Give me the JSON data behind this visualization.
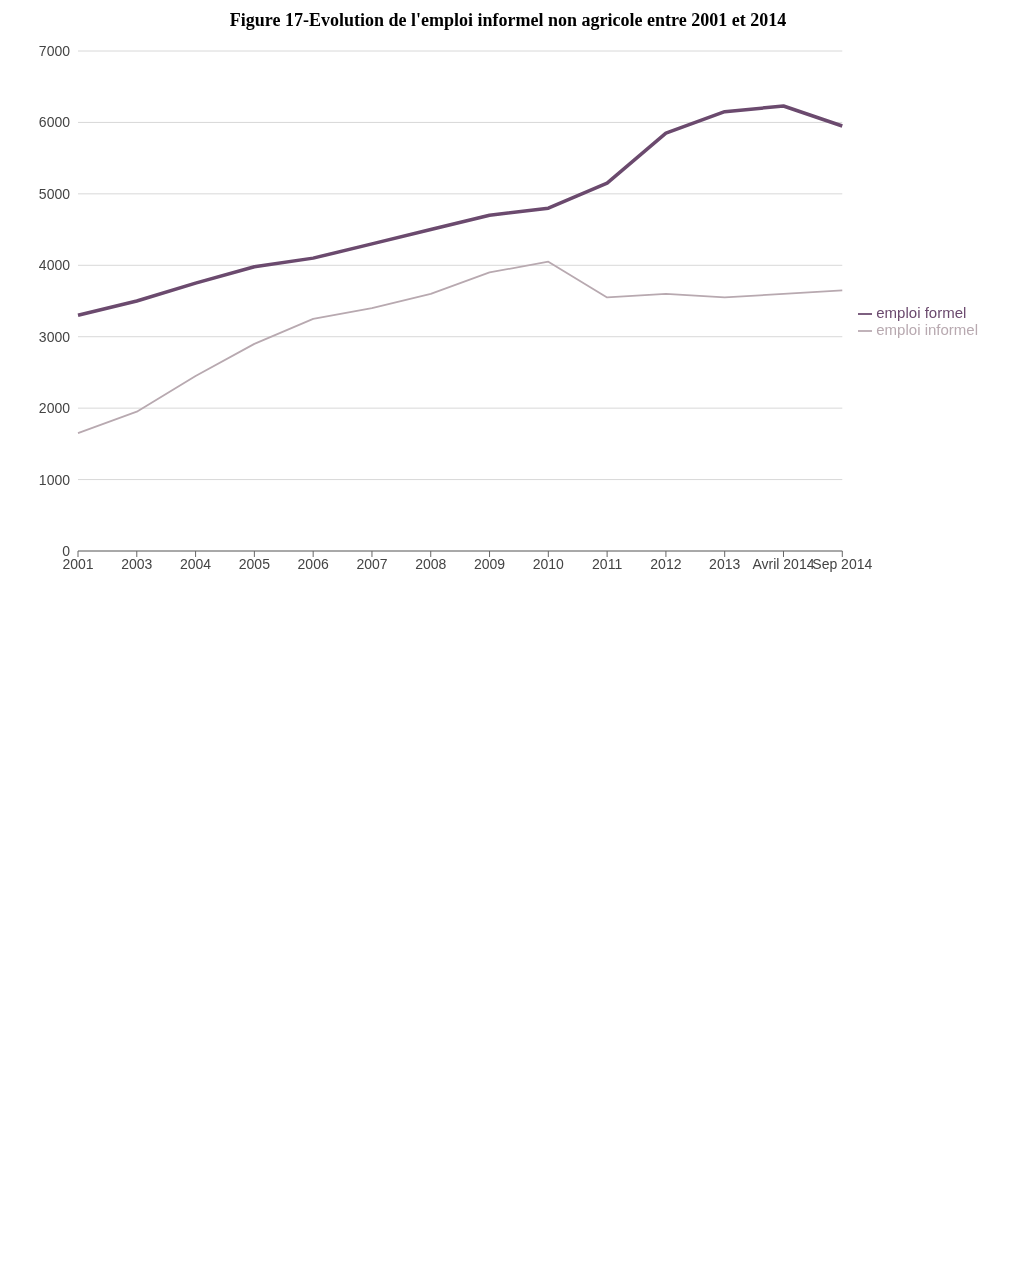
{
  "chart_data": {
    "type": "line",
    "title": "Figure 17-Evolution de l'emploi informel non agricole entre 2001 et 2014",
    "categories": [
      "2001",
      "2003",
      "2004",
      "2005",
      "2006",
      "2007",
      "2008",
      "2009",
      "2010",
      "2011",
      "2012",
      "2013",
      "Avril 2014",
      "Sep 2014"
    ],
    "series": [
      {
        "name": "emploi formel",
        "color": "#6b4a6e",
        "values": [
          3300,
          3500,
          3750,
          3980,
          4100,
          4300,
          4500,
          4700,
          4800,
          5150,
          5850,
          6150,
          6230,
          5950
        ]
      },
      {
        "name": "emploi informel",
        "color": "#b8a9b0",
        "values": [
          1650,
          1950,
          2450,
          2900,
          3250,
          3400,
          3600,
          3900,
          4050,
          3550,
          3600,
          3550,
          3600,
          3650
        ]
      }
    ],
    "ylim": [
      0,
      7000
    ],
    "yticks": [
      0,
      1000,
      2000,
      3000,
      4000,
      5000,
      6000,
      7000
    ],
    "grid": "y",
    "legend": "right",
    "marker": "none"
  }
}
